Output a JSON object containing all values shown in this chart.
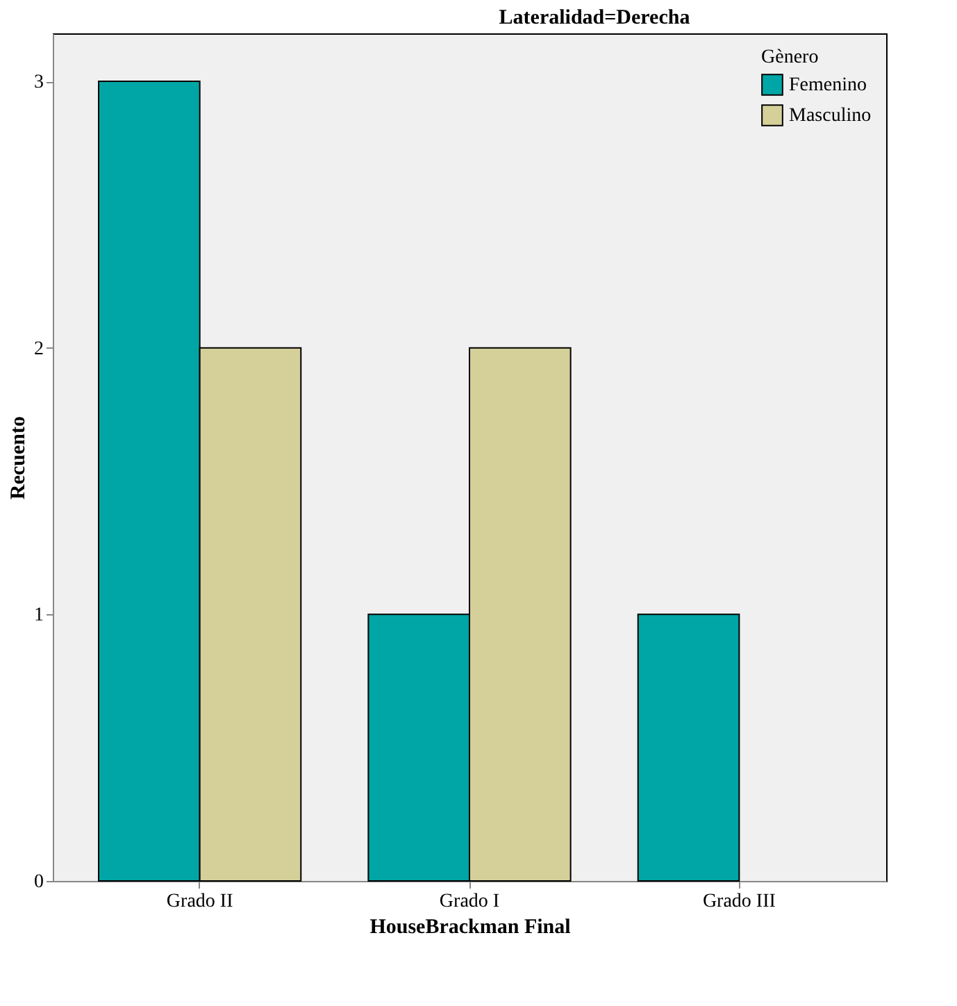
{
  "chart_data": {
    "type": "bar",
    "title": "Lateralidad=Derecha",
    "xlabel": "HouseBrackman Final",
    "ylabel": "Recuento",
    "legend_title": "Gènero",
    "categories": [
      "Grado II",
      "Grado I",
      "Grado III"
    ],
    "series": [
      {
        "name": "Femenino",
        "color": "#00a6a6",
        "values": [
          3,
          1,
          1
        ]
      },
      {
        "name": "Masculino",
        "color": "#d5cf9a",
        "values": [
          2,
          2,
          null
        ]
      }
    ],
    "ylim": [
      0,
      3.18
    ],
    "yticks": [
      0,
      1,
      2,
      3
    ],
    "grid": false,
    "legend": "top right"
  }
}
